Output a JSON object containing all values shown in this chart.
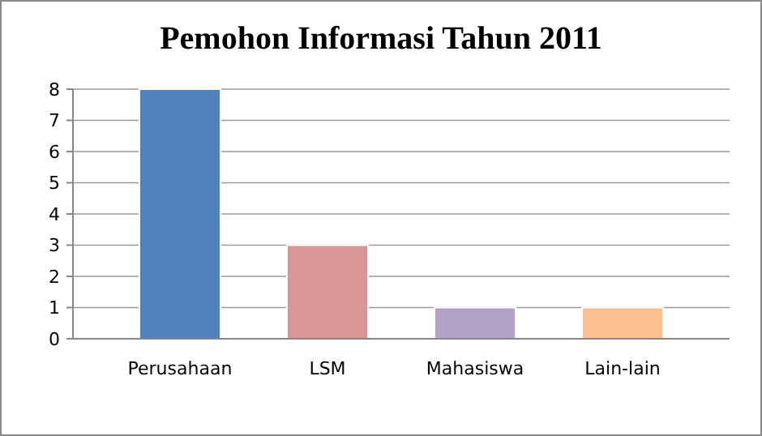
{
  "chart_data": {
    "type": "bar",
    "title": "Pemohon Informasi Tahun 2011",
    "categories": [
      "Perusahaan",
      "LSM",
      "Mahasiswa",
      "Lain-lain"
    ],
    "values": [
      8,
      3,
      1,
      1
    ],
    "colors": [
      "#4f81bd",
      "#d99694",
      "#b3a2c7",
      "#fac090"
    ],
    "ylim": [
      0,
      8
    ],
    "yticks": [
      0,
      1,
      2,
      3,
      4,
      5,
      6,
      7,
      8
    ],
    "grid": "y"
  }
}
